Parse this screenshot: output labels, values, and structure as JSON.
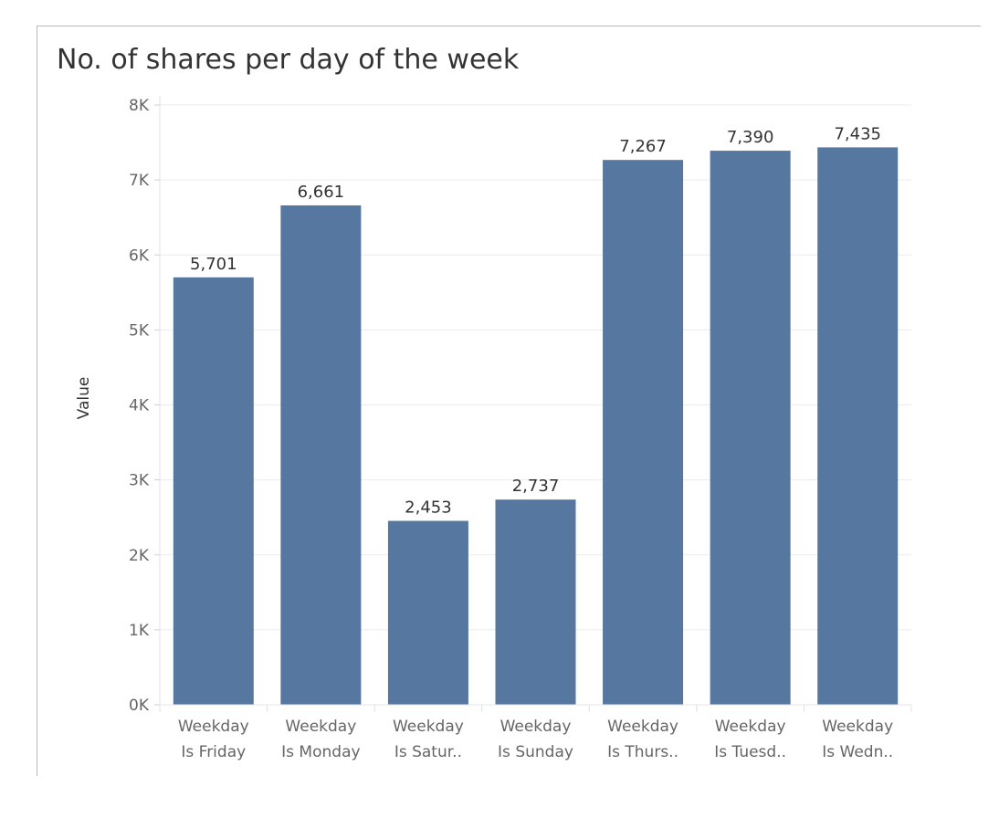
{
  "chart_data": {
    "type": "bar",
    "title": "No. of shares per day of the week",
    "xlabel": "",
    "ylabel": "Value",
    "categories": [
      [
        "Weekday",
        "Is Friday"
      ],
      [
        "Weekday",
        "Is Monday"
      ],
      [
        "Weekday",
        "Is Satur.."
      ],
      [
        "Weekday",
        "Is Sunday"
      ],
      [
        "Weekday",
        "Is Thurs.."
      ],
      [
        "Weekday",
        "Is Tuesd.."
      ],
      [
        "Weekday",
        "Is Wedn.."
      ]
    ],
    "values": [
      5701,
      6661,
      2453,
      2737,
      7267,
      7390,
      7435
    ],
    "value_labels": [
      "5,701",
      "6,661",
      "2,453",
      "2,737",
      "7,267",
      "7,390",
      "7,435"
    ],
    "ylim": [
      0,
      8000
    ],
    "yticks": [
      0,
      1000,
      2000,
      3000,
      4000,
      5000,
      6000,
      7000,
      8000
    ],
    "ytick_labels": [
      "0K",
      "1K",
      "2K",
      "3K",
      "4K",
      "5K",
      "6K",
      "7K",
      "8K"
    ],
    "grid": true,
    "legend": "none",
    "colors": {
      "bar": "#56779f",
      "grid": "#ebebeb",
      "axis_text": "#666666",
      "label_text": "#333333"
    }
  }
}
